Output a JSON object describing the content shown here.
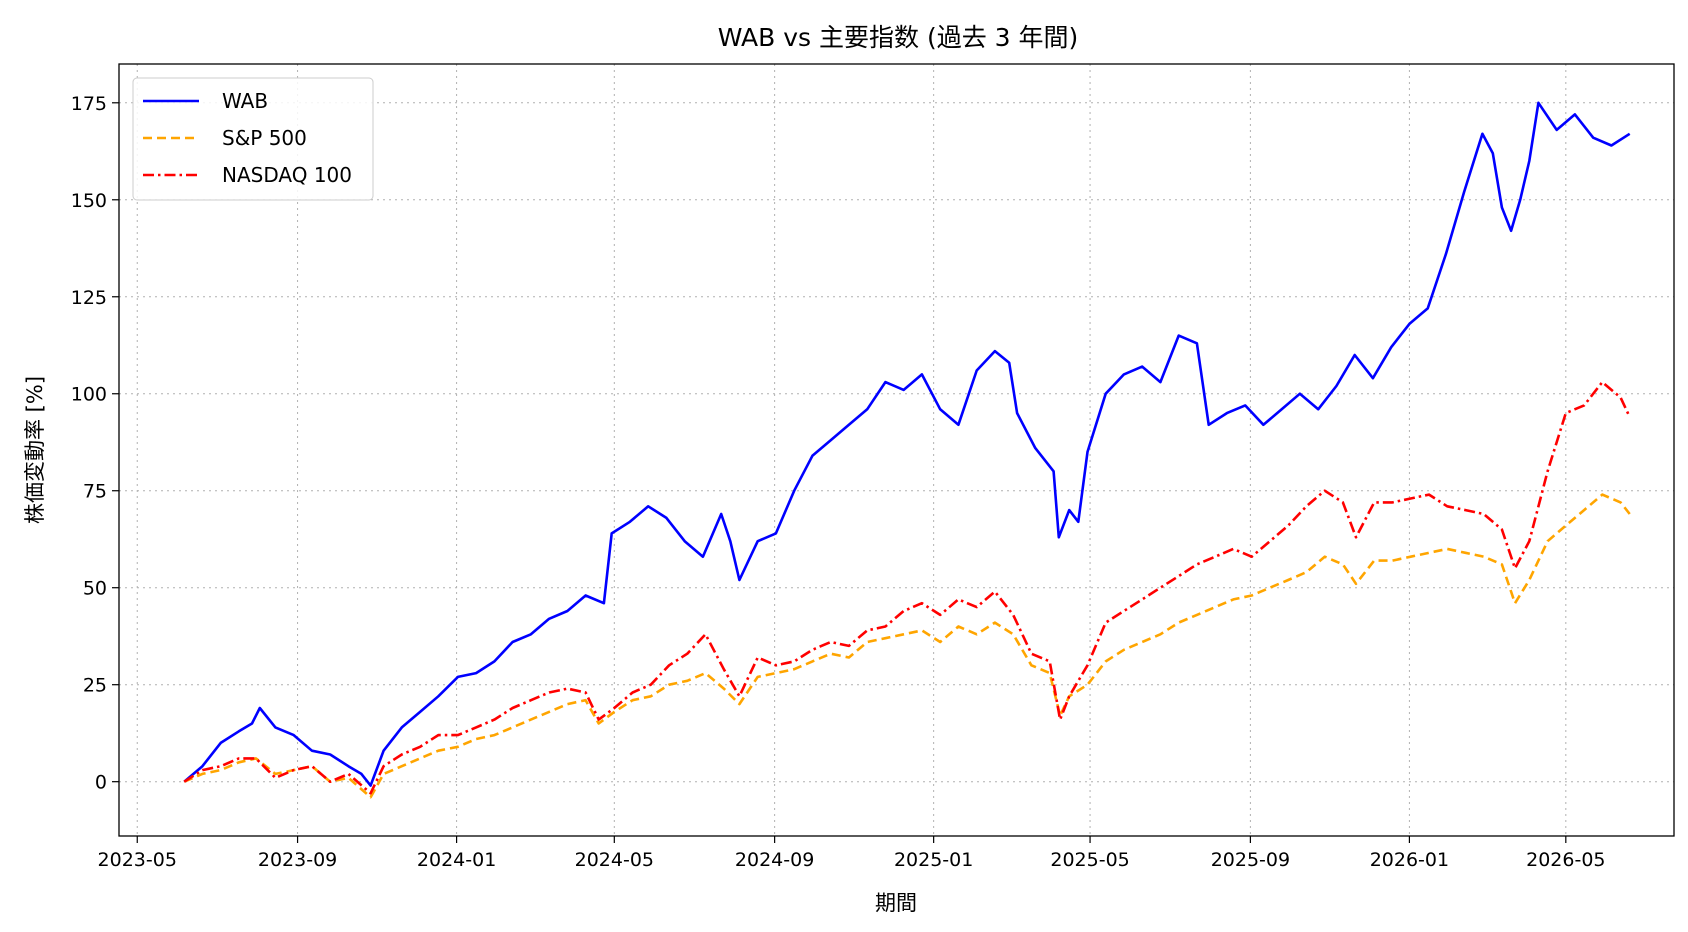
{
  "chart_data": {
    "type": "line",
    "title": "WAB vs 主要指数 (過去 3 年間)",
    "xlabel": "期間",
    "ylabel": "株価変動率 [%]",
    "x_range": [
      "2023-04-17",
      "2026-07-23"
    ],
    "ylim": [
      -14,
      185
    ],
    "x_ticks": [
      "2023-05",
      "2023-09",
      "2024-01",
      "2024-05",
      "2024-09",
      "2025-01",
      "2025-05",
      "2025-09",
      "2026-01",
      "2026-05"
    ],
    "y_ticks": [
      0,
      25,
      50,
      75,
      100,
      125,
      150,
      175
    ],
    "grid": true,
    "legend_position": "upper left",
    "series": [
      {
        "name": "WAB",
        "color": "#0000ff",
        "style": "solid",
        "points": [
          [
            "2023-06-06",
            0
          ],
          [
            "2023-06-20",
            4
          ],
          [
            "2023-07-04",
            10
          ],
          [
            "2023-07-18",
            13
          ],
          [
            "2023-07-28",
            15
          ],
          [
            "2023-08-03",
            19
          ],
          [
            "2023-08-15",
            14
          ],
          [
            "2023-08-29",
            12
          ],
          [
            "2023-09-12",
            8
          ],
          [
            "2023-09-26",
            7
          ],
          [
            "2023-10-10",
            4
          ],
          [
            "2023-10-20",
            2
          ],
          [
            "2023-10-27",
            -1
          ],
          [
            "2023-11-06",
            8
          ],
          [
            "2023-11-20",
            14
          ],
          [
            "2023-12-04",
            18
          ],
          [
            "2023-12-18",
            22
          ],
          [
            "2024-01-02",
            27
          ],
          [
            "2024-01-16",
            28
          ],
          [
            "2024-01-30",
            31
          ],
          [
            "2024-02-13",
            36
          ],
          [
            "2024-02-27",
            38
          ],
          [
            "2024-03-12",
            42
          ],
          [
            "2024-03-26",
            44
          ],
          [
            "2024-04-09",
            48
          ],
          [
            "2024-04-23",
            46
          ],
          [
            "2024-04-29",
            64
          ],
          [
            "2024-05-13",
            67
          ],
          [
            "2024-05-27",
            71
          ],
          [
            "2024-06-10",
            68
          ],
          [
            "2024-06-24",
            62
          ],
          [
            "2024-07-08",
            58
          ],
          [
            "2024-07-22",
            69
          ],
          [
            "2024-07-29",
            62
          ],
          [
            "2024-08-05",
            52
          ],
          [
            "2024-08-19",
            62
          ],
          [
            "2024-09-02",
            64
          ],
          [
            "2024-09-16",
            75
          ],
          [
            "2024-09-30",
            84
          ],
          [
            "2024-10-14",
            88
          ],
          [
            "2024-10-28",
            92
          ],
          [
            "2024-11-11",
            96
          ],
          [
            "2024-11-25",
            103
          ],
          [
            "2024-12-09",
            101
          ],
          [
            "2024-12-23",
            105
          ],
          [
            "2025-01-06",
            96
          ],
          [
            "2025-01-20",
            92
          ],
          [
            "2025-02-03",
            106
          ],
          [
            "2025-02-17",
            111
          ],
          [
            "2025-02-28",
            108
          ],
          [
            "2025-03-06",
            95
          ],
          [
            "2025-03-20",
            86
          ],
          [
            "2025-04-03",
            80
          ],
          [
            "2025-04-07",
            63
          ],
          [
            "2025-04-15",
            70
          ],
          [
            "2025-04-22",
            67
          ],
          [
            "2025-04-29",
            85
          ],
          [
            "2025-05-13",
            100
          ],
          [
            "2025-05-27",
            105
          ],
          [
            "2025-06-10",
            107
          ],
          [
            "2025-06-24",
            103
          ],
          [
            "2025-07-08",
            115
          ],
          [
            "2025-07-22",
            113
          ],
          [
            "2025-07-31",
            92
          ],
          [
            "2025-08-14",
            95
          ],
          [
            "2025-08-28",
            97
          ],
          [
            "2025-09-11",
            92
          ],
          [
            "2025-09-25",
            96
          ],
          [
            "2025-10-09",
            100
          ],
          [
            "2025-10-23",
            96
          ],
          [
            "2025-11-06",
            102
          ],
          [
            "2025-11-20",
            110
          ],
          [
            "2025-12-04",
            104
          ],
          [
            "2025-12-18",
            112
          ],
          [
            "2026-01-01",
            118
          ],
          [
            "2026-01-15",
            122
          ],
          [
            "2026-01-29",
            136
          ],
          [
            "2026-02-12",
            152
          ],
          [
            "2026-02-26",
            167
          ],
          [
            "2026-03-06",
            162
          ],
          [
            "2026-03-13",
            148
          ],
          [
            "2026-03-20",
            142
          ],
          [
            "2026-03-27",
            150
          ],
          [
            "2026-04-03",
            160
          ],
          [
            "2026-04-10",
            175
          ],
          [
            "2026-04-24",
            168
          ],
          [
            "2026-05-08",
            172
          ],
          [
            "2026-05-22",
            166
          ],
          [
            "2026-06-05",
            164
          ],
          [
            "2026-06-19",
            167
          ]
        ]
      },
      {
        "name": "S&P 500",
        "color": "#ffa500",
        "style": "dashed",
        "points": [
          [
            "2023-06-06",
            0
          ],
          [
            "2023-06-20",
            2
          ],
          [
            "2023-07-04",
            3
          ],
          [
            "2023-07-18",
            5
          ],
          [
            "2023-07-31",
            6
          ],
          [
            "2023-08-15",
            2
          ],
          [
            "2023-08-29",
            3
          ],
          [
            "2023-09-12",
            4
          ],
          [
            "2023-09-26",
            0
          ],
          [
            "2023-10-10",
            1
          ],
          [
            "2023-10-27",
            -4
          ],
          [
            "2023-11-06",
            2
          ],
          [
            "2023-11-20",
            4
          ],
          [
            "2023-12-04",
            6
          ],
          [
            "2023-12-18",
            8
          ],
          [
            "2024-01-02",
            9
          ],
          [
            "2024-01-16",
            11
          ],
          [
            "2024-01-30",
            12
          ],
          [
            "2024-02-13",
            14
          ],
          [
            "2024-02-27",
            16
          ],
          [
            "2024-03-12",
            18
          ],
          [
            "2024-03-26",
            20
          ],
          [
            "2024-04-09",
            21
          ],
          [
            "2024-04-19",
            15
          ],
          [
            "2024-05-01",
            18
          ],
          [
            "2024-05-15",
            21
          ],
          [
            "2024-05-29",
            22
          ],
          [
            "2024-06-12",
            25
          ],
          [
            "2024-06-26",
            26
          ],
          [
            "2024-07-10",
            28
          ],
          [
            "2024-07-24",
            24
          ],
          [
            "2024-08-05",
            20
          ],
          [
            "2024-08-19",
            27
          ],
          [
            "2024-09-02",
            28
          ],
          [
            "2024-09-16",
            29
          ],
          [
            "2024-09-30",
            31
          ],
          [
            "2024-10-14",
            33
          ],
          [
            "2024-10-28",
            32
          ],
          [
            "2024-11-11",
            36
          ],
          [
            "2024-11-25",
            37
          ],
          [
            "2024-12-09",
            38
          ],
          [
            "2024-12-23",
            39
          ],
          [
            "2025-01-06",
            36
          ],
          [
            "2025-01-20",
            40
          ],
          [
            "2025-02-03",
            38
          ],
          [
            "2025-02-17",
            41
          ],
          [
            "2025-03-03",
            38
          ],
          [
            "2025-03-17",
            30
          ],
          [
            "2025-03-31",
            28
          ],
          [
            "2025-04-08",
            17
          ],
          [
            "2025-04-15",
            22
          ],
          [
            "2025-04-29",
            25
          ],
          [
            "2025-05-13",
            31
          ],
          [
            "2025-05-27",
            34
          ],
          [
            "2025-06-10",
            36
          ],
          [
            "2025-06-24",
            38
          ],
          [
            "2025-07-08",
            41
          ],
          [
            "2025-07-22",
            43
          ],
          [
            "2025-08-05",
            45
          ],
          [
            "2025-08-19",
            47
          ],
          [
            "2025-09-02",
            48
          ],
          [
            "2025-09-16",
            50
          ],
          [
            "2025-09-30",
            52
          ],
          [
            "2025-10-14",
            54
          ],
          [
            "2025-10-28",
            58
          ],
          [
            "2025-11-11",
            56
          ],
          [
            "2025-11-21",
            51
          ],
          [
            "2025-12-05",
            57
          ],
          [
            "2025-12-19",
            57
          ],
          [
            "2026-01-02",
            58
          ],
          [
            "2026-01-16",
            59
          ],
          [
            "2026-01-30",
            60
          ],
          [
            "2026-02-13",
            59
          ],
          [
            "2026-02-27",
            58
          ],
          [
            "2026-03-13",
            56
          ],
          [
            "2026-03-23",
            46
          ],
          [
            "2026-04-03",
            52
          ],
          [
            "2026-04-17",
            62
          ],
          [
            "2026-05-01",
            66
          ],
          [
            "2026-05-15",
            70
          ],
          [
            "2026-05-29",
            74
          ],
          [
            "2026-06-12",
            72
          ],
          [
            "2026-06-19",
            69
          ]
        ]
      },
      {
        "name": "NASDAQ 100",
        "color": "#ff0000",
        "style": "dashdot",
        "points": [
          [
            "2023-06-06",
            0
          ],
          [
            "2023-06-20",
            3
          ],
          [
            "2023-07-04",
            4
          ],
          [
            "2023-07-18",
            6
          ],
          [
            "2023-07-31",
            6
          ],
          [
            "2023-08-15",
            1
          ],
          [
            "2023-08-29",
            3
          ],
          [
            "2023-09-12",
            4
          ],
          [
            "2023-09-26",
            0
          ],
          [
            "2023-10-10",
            2
          ],
          [
            "2023-10-27",
            -3
          ],
          [
            "2023-11-06",
            4
          ],
          [
            "2023-11-20",
            7
          ],
          [
            "2023-12-04",
            9
          ],
          [
            "2023-12-18",
            12
          ],
          [
            "2024-01-02",
            12
          ],
          [
            "2024-01-16",
            14
          ],
          [
            "2024-01-30",
            16
          ],
          [
            "2024-02-13",
            19
          ],
          [
            "2024-02-27",
            21
          ],
          [
            "2024-03-12",
            23
          ],
          [
            "2024-03-26",
            24
          ],
          [
            "2024-04-09",
            23
          ],
          [
            "2024-04-19",
            16
          ],
          [
            "2024-05-01",
            19
          ],
          [
            "2024-05-15",
            23
          ],
          [
            "2024-05-29",
            25
          ],
          [
            "2024-06-12",
            30
          ],
          [
            "2024-06-26",
            33
          ],
          [
            "2024-07-10",
            38
          ],
          [
            "2024-07-24",
            29
          ],
          [
            "2024-08-05",
            22
          ],
          [
            "2024-08-19",
            32
          ],
          [
            "2024-09-02",
            30
          ],
          [
            "2024-09-16",
            31
          ],
          [
            "2024-09-30",
            34
          ],
          [
            "2024-10-14",
            36
          ],
          [
            "2024-10-28",
            35
          ],
          [
            "2024-11-11",
            39
          ],
          [
            "2024-11-25",
            40
          ],
          [
            "2024-12-09",
            44
          ],
          [
            "2024-12-23",
            46
          ],
          [
            "2025-01-06",
            43
          ],
          [
            "2025-01-20",
            47
          ],
          [
            "2025-02-03",
            45
          ],
          [
            "2025-02-17",
            49
          ],
          [
            "2025-03-03",
            43
          ],
          [
            "2025-03-17",
            33
          ],
          [
            "2025-03-31",
            31
          ],
          [
            "2025-04-08",
            16
          ],
          [
            "2025-04-15",
            22
          ],
          [
            "2025-04-29",
            30
          ],
          [
            "2025-05-13",
            41
          ],
          [
            "2025-05-27",
            44
          ],
          [
            "2025-06-10",
            47
          ],
          [
            "2025-06-24",
            50
          ],
          [
            "2025-07-08",
            53
          ],
          [
            "2025-07-22",
            56
          ],
          [
            "2025-08-05",
            58
          ],
          [
            "2025-08-19",
            60
          ],
          [
            "2025-09-02",
            58
          ],
          [
            "2025-09-16",
            62
          ],
          [
            "2025-09-30",
            66
          ],
          [
            "2025-10-14",
            71
          ],
          [
            "2025-10-28",
            75
          ],
          [
            "2025-11-11",
            72
          ],
          [
            "2025-11-21",
            63
          ],
          [
            "2025-12-05",
            72
          ],
          [
            "2025-12-19",
            72
          ],
          [
            "2026-01-02",
            73
          ],
          [
            "2026-01-16",
            74
          ],
          [
            "2026-01-30",
            71
          ],
          [
            "2026-02-13",
            70
          ],
          [
            "2026-02-27",
            69
          ],
          [
            "2026-03-13",
            65
          ],
          [
            "2026-03-23",
            55
          ],
          [
            "2026-04-03",
            62
          ],
          [
            "2026-04-17",
            80
          ],
          [
            "2026-05-01",
            95
          ],
          [
            "2026-05-15",
            97
          ],
          [
            "2026-05-29",
            103
          ],
          [
            "2026-06-12",
            99
          ],
          [
            "2026-06-19",
            94
          ]
        ]
      }
    ]
  }
}
